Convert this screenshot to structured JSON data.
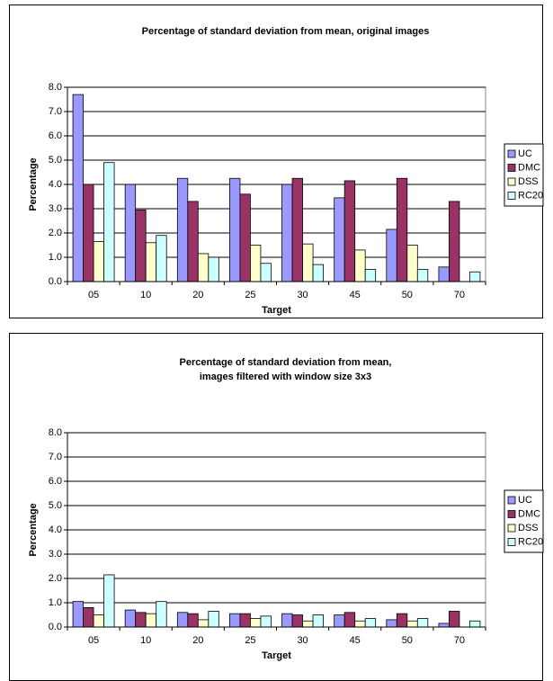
{
  "chart_data": [
    {
      "type": "bar",
      "title": [
        "Percentage of standard deviation from mean, original images"
      ],
      "x_label": "Target",
      "y_label": "Percentage",
      "categories": [
        "05",
        "10",
        "20",
        "25",
        "30",
        "45",
        "50",
        "70"
      ],
      "series": [
        {
          "name": "UC",
          "color": "#9999ff",
          "values": [
            7.7,
            4.0,
            4.25,
            4.25,
            4.0,
            3.45,
            2.15,
            0.6
          ]
        },
        {
          "name": "DMC",
          "color": "#993366",
          "values": [
            4.0,
            2.95,
            3.3,
            3.6,
            4.25,
            4.15,
            4.25,
            3.3
          ]
        },
        {
          "name": "DSS",
          "color": "#ffffcc",
          "values": [
            1.65,
            1.6,
            1.15,
            1.5,
            1.55,
            1.3,
            1.5,
            null
          ]
        },
        {
          "name": "RC20",
          "color": "#ccffff",
          "values": [
            4.9,
            1.9,
            1.0,
            0.75,
            0.7,
            0.5,
            0.5,
            0.4
          ]
        }
      ],
      "ylim": [
        0,
        8
      ],
      "yticks": [
        {
          "value": 0,
          "label": "0.0"
        },
        {
          "value": 1,
          "label": "1.0"
        },
        {
          "value": 2,
          "label": "2.0"
        },
        {
          "value": 3,
          "label": "3.0"
        },
        {
          "value": 4,
          "label": "4.0"
        },
        {
          "value": 5,
          "label": "5.0"
        },
        {
          "value": 6,
          "label": "6.0"
        },
        {
          "value": 7,
          "label": "7.0"
        },
        {
          "value": 8,
          "label": "8.0"
        }
      ],
      "grid": true,
      "legend": "right"
    },
    {
      "type": "bar",
      "title": [
        "Percentage of standard deviation from mean,",
        "images filtered with window size 3x3"
      ],
      "x_label": "Target",
      "y_label": "Percentage",
      "categories": [
        "05",
        "10",
        "20",
        "25",
        "30",
        "45",
        "50",
        "70"
      ],
      "series": [
        {
          "name": "UC",
          "color": "#9999ff",
          "values": [
            1.05,
            0.7,
            0.6,
            0.55,
            0.55,
            0.5,
            0.3,
            0.15
          ]
        },
        {
          "name": "DMC",
          "color": "#993366",
          "values": [
            0.8,
            0.6,
            0.55,
            0.55,
            0.5,
            0.6,
            0.55,
            0.65
          ]
        },
        {
          "name": "DSS",
          "color": "#ffffcc",
          "values": [
            0.5,
            0.55,
            0.3,
            0.35,
            0.25,
            0.25,
            0.25,
            null
          ]
        },
        {
          "name": "RC20",
          "color": "#ccffff",
          "values": [
            2.15,
            1.05,
            0.65,
            0.45,
            0.5,
            0.35,
            0.35,
            0.25
          ]
        }
      ],
      "ylim": [
        0,
        8
      ],
      "yticks": [
        {
          "value": 0,
          "label": "0.0"
        },
        {
          "value": 1,
          "label": "1.0"
        },
        {
          "value": 2,
          "label": "2.0"
        },
        {
          "value": 3,
          "label": "3.0"
        },
        {
          "value": 4,
          "label": "4.0"
        },
        {
          "value": 5,
          "label": "5.0"
        },
        {
          "value": 6,
          "label": "6.0"
        },
        {
          "value": 7,
          "label": "7.0"
        },
        {
          "value": 8,
          "label": "8.0"
        }
      ],
      "grid": true,
      "legend": "right"
    }
  ]
}
